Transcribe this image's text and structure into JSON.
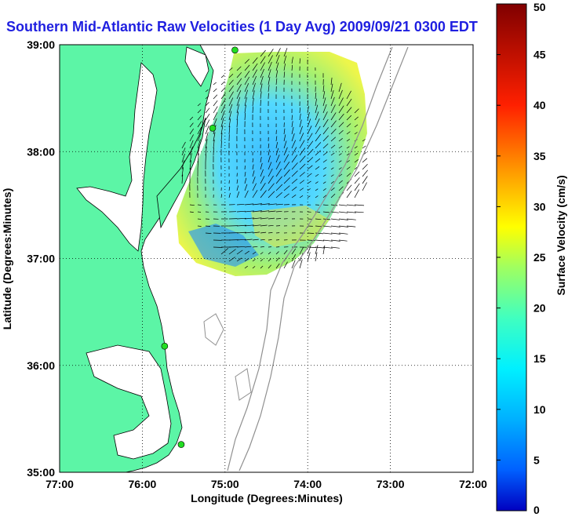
{
  "title": "Southern Mid-Atlantic Raw Velocities (1 Day Avg) 2009/09/21 0300 EDT",
  "xlabel": "Longitude (Degrees:Minutes)",
  "ylabel": "Latitude (Degrees:Minutes)",
  "x_ticks": [
    "77:00",
    "76:00",
    "75:00",
    "74:00",
    "73:00",
    "72:00"
  ],
  "y_ticks": [
    "39:00",
    "38:00",
    "37:00",
    "36:00",
    "35:00"
  ],
  "colorbar": {
    "label": "Surface Velocity (cm/s)",
    "ticks": [
      "50",
      "45",
      "40",
      "35",
      "30",
      "25",
      "20",
      "15",
      "10",
      "5",
      "0"
    ],
    "min": 0,
    "max": 50
  },
  "colors": {
    "land": "#5cf5a6",
    "ocean": "#ffffff",
    "title": "#1f1fe0",
    "grid": "#000000",
    "isobath": "#909090",
    "station": "#22dd22"
  },
  "map_extent": {
    "lon_range": [
      -77,
      -72
    ],
    "lat_range": [
      35,
      39
    ]
  },
  "stations": [
    {
      "lon": -74.88,
      "lat": 38.95
    },
    {
      "lon": -75.15,
      "lat": 38.22
    },
    {
      "lon": -75.73,
      "lat": 36.18
    },
    {
      "lon": -75.53,
      "lat": 35.26
    }
  ]
}
